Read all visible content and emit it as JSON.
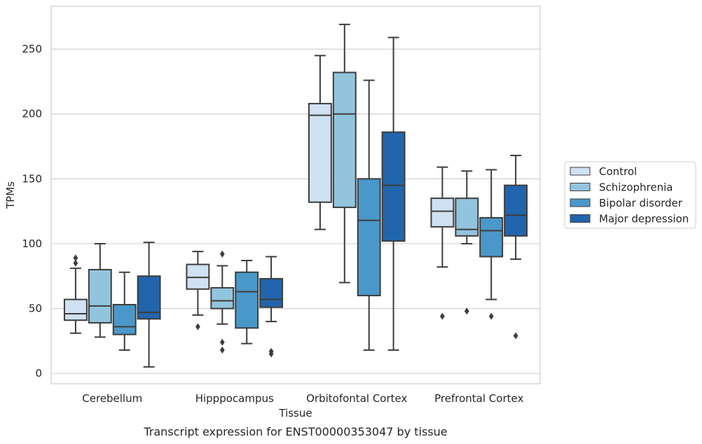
{
  "chart_data": {
    "type": "box",
    "caption": "Transcript expression for ENST00000353047 by tissue",
    "xlabel": "Tissue",
    "ylabel": "TPMs",
    "ylim": [
      -8,
      283
    ],
    "yticks": [
      0,
      50,
      100,
      150,
      200,
      250
    ],
    "grid": true,
    "legend_position": "right",
    "categories": [
      "Cerebellum",
      "Hipppocampus",
      "Orbitofontal Cortex",
      "Prefrontal Cortex"
    ],
    "series": [
      {
        "name": "Control",
        "color": "#cfe1f2",
        "boxes": [
          {
            "whislo": 31,
            "q1": 41,
            "med": 46,
            "q3": 57,
            "whishi": 81,
            "fliers": [
              85,
              89
            ]
          },
          {
            "whislo": 45,
            "q1": 65,
            "med": 74,
            "q3": 84,
            "whishi": 94,
            "fliers": [
              36
            ]
          },
          {
            "whislo": 111,
            "q1": 132,
            "med": 199,
            "q3": 208,
            "whishi": 245,
            "fliers": []
          },
          {
            "whislo": 82,
            "q1": 113,
            "med": 125,
            "q3": 135,
            "whishi": 159,
            "fliers": [
              44
            ]
          }
        ]
      },
      {
        "name": "Schizophrenia",
        "color": "#93c4de",
        "boxes": [
          {
            "whislo": 28,
            "q1": 39,
            "med": 52,
            "q3": 80,
            "whishi": 100,
            "fliers": []
          },
          {
            "whislo": 38,
            "q1": 50,
            "med": 56,
            "q3": 66,
            "whishi": 83,
            "fliers": [
              92,
              24,
              18
            ]
          },
          {
            "whislo": 70,
            "q1": 128,
            "med": 200,
            "q3": 232,
            "whishi": 269,
            "fliers": []
          },
          {
            "whislo": 100,
            "q1": 106,
            "med": 111,
            "q3": 135,
            "whishi": 156,
            "fliers": [
              48
            ]
          }
        ]
      },
      {
        "name": "Bipolar disorder",
        "color": "#4a98c9",
        "boxes": [
          {
            "whislo": 18,
            "q1": 30,
            "med": 36,
            "q3": 53,
            "whishi": 78,
            "fliers": []
          },
          {
            "whislo": 23,
            "q1": 35,
            "med": 63,
            "q3": 78,
            "whishi": 87,
            "fliers": []
          },
          {
            "whislo": 18,
            "q1": 60,
            "med": 118,
            "q3": 150,
            "whishi": 226,
            "fliers": []
          },
          {
            "whislo": 57,
            "q1": 90,
            "med": 110,
            "q3": 120,
            "whishi": 157,
            "fliers": [
              44
            ]
          }
        ]
      },
      {
        "name": "Major depression",
        "color": "#2265ad",
        "boxes": [
          {
            "whislo": 5,
            "q1": 42,
            "med": 47,
            "q3": 75,
            "whishi": 101,
            "fliers": []
          },
          {
            "whislo": 40,
            "q1": 51,
            "med": 57,
            "q3": 73,
            "whishi": 90,
            "fliers": [
              17,
              15
            ]
          },
          {
            "whislo": 18,
            "q1": 102,
            "med": 145,
            "q3": 186,
            "whishi": 259,
            "fliers": []
          },
          {
            "whislo": 88,
            "q1": 106,
            "med": 122,
            "q3": 145,
            "whishi": 168,
            "fliers": [
              29
            ]
          }
        ]
      }
    ]
  }
}
